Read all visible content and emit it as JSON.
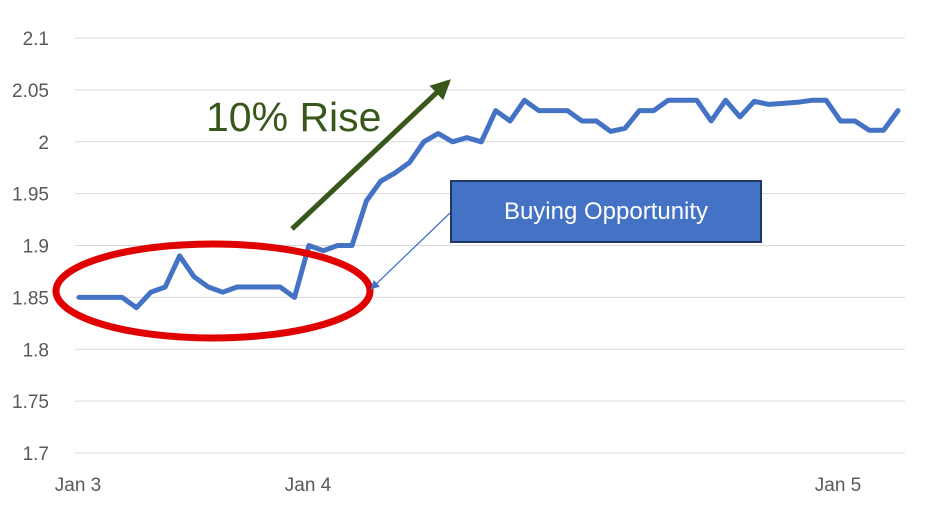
{
  "chart_data": {
    "type": "line",
    "title": "",
    "xlabel": "",
    "ylabel": "",
    "ylim": [
      1.7,
      2.1
    ],
    "yticks": [
      "2.1",
      "2.05",
      "2",
      "1.95",
      "1.9",
      "1.85",
      "1.8",
      "1.75",
      "1.7"
    ],
    "xticks": [
      "Jan 3",
      "Jan 4",
      "Jan 5"
    ],
    "grid": true,
    "series": [
      {
        "color": "#4472c4",
        "values": [
          1.85,
          1.85,
          1.85,
          1.85,
          1.84,
          1.855,
          1.86,
          1.89,
          1.87,
          1.86,
          1.855,
          1.86,
          1.86,
          1.86,
          1.86,
          1.85,
          1.9,
          1.895,
          1.9,
          1.9,
          1.943,
          1.962,
          1.97,
          1.98,
          2.0,
          2.008,
          2.0,
          2.004,
          2.0,
          2.03,
          2.02,
          2.04,
          2.03,
          2.03,
          2.03,
          2.02,
          2.02,
          2.01,
          2.013,
          2.03,
          2.03,
          2.04,
          2.04,
          2.04,
          2.02,
          2.04,
          2.024,
          2.039,
          2.036,
          2.037,
          2.038,
          2.04,
          2.04,
          2.02,
          2.02,
          2.011,
          2.011,
          2.03
        ]
      }
    ],
    "annotations": {
      "rise_label": "10% Rise",
      "callout_label": "Buying Opportunity",
      "arrow_color": "#38571a",
      "ellipse_color": "#e00000",
      "callout_color": "#4472c4"
    }
  }
}
